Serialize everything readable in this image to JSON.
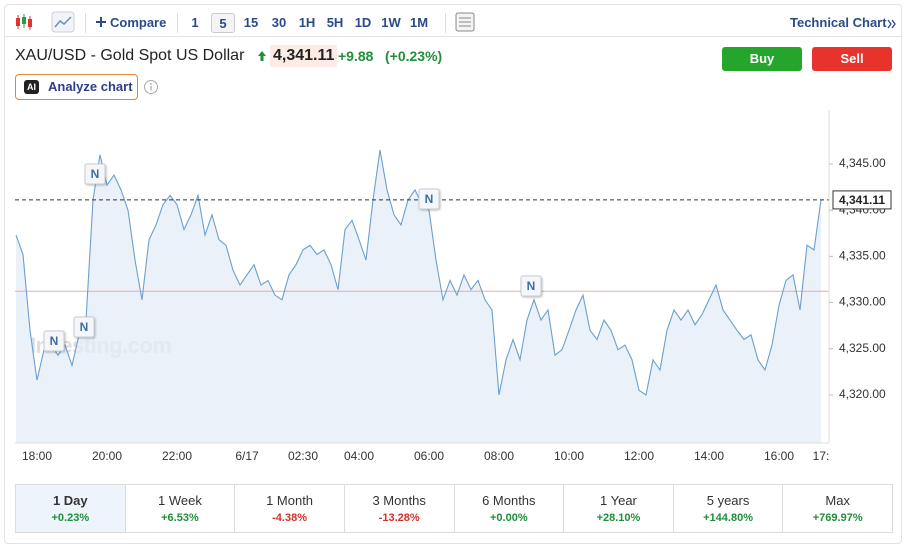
{
  "toolbar": {
    "compare": "Compare",
    "intervals": [
      "1",
      "5",
      "15",
      "30",
      "1H",
      "5H",
      "1D",
      "1W",
      "1M"
    ],
    "selected_interval": "5",
    "technical_chart": "Technical Chart"
  },
  "header": {
    "title": "XAU/USD - Gold Spot US Dollar",
    "price": "4,341.11",
    "change": "+9.88",
    "change_percent": "(+0.23%)",
    "buy": "Buy",
    "sell": "Sell",
    "ai_badge": "AI",
    "analyze": "Analyze chart"
  },
  "chart_data": {
    "type": "line",
    "watermark": "Investing.com",
    "color": "#6c9fcd",
    "area_color": "#e3ecf5",
    "grid": false,
    "ylim": [
      4314.8,
      4350.3
    ],
    "yticks": [
      {
        "value": 4320,
        "label": "4,320.00"
      },
      {
        "value": 4325,
        "label": "4,325.00"
      },
      {
        "value": 4330,
        "label": "4,330.00"
      },
      {
        "value": 4335,
        "label": "4,335.00"
      },
      {
        "value": 4340,
        "label": "4,340.00"
      },
      {
        "value": 4345,
        "label": "4,345.00"
      }
    ],
    "current_price": {
      "value": 4341.11,
      "label": "4,341.11"
    },
    "reference_line": 4331.23,
    "news_markers": [
      "N",
      "N",
      "N",
      "N",
      "N"
    ],
    "categories": [
      null,
      null,
      null,
      "18:00",
      null,
      null,
      null,
      null,
      null,
      null,
      null,
      null,
      null,
      "20:00",
      null,
      null,
      null,
      null,
      null,
      null,
      null,
      null,
      null,
      "22:00",
      null,
      null,
      null,
      null,
      null,
      null,
      null,
      null,
      null,
      "6/17",
      null,
      null,
      null,
      null,
      null,
      null,
      null,
      "02:30",
      null,
      null,
      null,
      null,
      null,
      null,
      null,
      "04:00",
      null,
      null,
      null,
      null,
      null,
      null,
      null,
      null,
      null,
      "06:00",
      null,
      null,
      null,
      null,
      null,
      null,
      null,
      null,
      null,
      "08:00",
      null,
      null,
      null,
      null,
      null,
      null,
      null,
      null,
      null,
      "10:00",
      null,
      null,
      null,
      null,
      null,
      null,
      null,
      null,
      null,
      "12:00",
      null,
      null,
      null,
      null,
      null,
      null,
      null,
      null,
      null,
      "14:00",
      null,
      null,
      null,
      null,
      null,
      null,
      null,
      null,
      null,
      "16:00",
      null,
      null,
      null,
      null,
      null,
      "17:"
    ],
    "values": [
      4337.3,
      4335.2,
      4327.0,
      4321.6,
      4324.9,
      4325.4,
      4324.3,
      4325.4,
      4323.2,
      4326.5,
      4328.1,
      4341.1,
      4346.0,
      4342.7,
      4343.8,
      4342.2,
      4340.0,
      4334.6,
      4330.3,
      4336.8,
      4338.4,
      4340.6,
      4341.6,
      4340.6,
      4337.9,
      4339.5,
      4341.6,
      4337.3,
      4339.5,
      4336.8,
      4336.2,
      4333.5,
      4331.9,
      4333.0,
      4334.1,
      4331.9,
      4332.4,
      4330.8,
      4330.3,
      4333.0,
      4334.1,
      4335.7,
      4336.2,
      4335.2,
      4335.7,
      4334.1,
      4331.4,
      4337.9,
      4338.9,
      4336.8,
      4334.6,
      4341.1,
      4346.5,
      4342.2,
      4339.5,
      4338.4,
      4341.1,
      4342.2,
      4340.6,
      4340.0,
      4334.6,
      4330.3,
      4332.4,
      4330.8,
      4333.0,
      4331.4,
      4332.4,
      4330.3,
      4329.2,
      4320.0,
      4323.8,
      4326.0,
      4323.8,
      4328.1,
      4330.3,
      4328.1,
      4329.2,
      4324.3,
      4324.9,
      4327.0,
      4329.2,
      4330.8,
      4327.0,
      4326.0,
      4328.1,
      4327.0,
      4324.9,
      4325.4,
      4323.8,
      4320.5,
      4320.0,
      4323.8,
      4322.7,
      4327.0,
      4329.2,
      4328.1,
      4329.2,
      4327.6,
      4328.7,
      4330.3,
      4331.9,
      4329.2,
      4328.1,
      4327.0,
      4326.0,
      4326.5,
      4323.8,
      4322.7,
      4325.4,
      4329.7,
      4332.4,
      4333.0,
      4329.2,
      4336.2,
      4335.7,
      4341.11
    ]
  },
  "periods": [
    {
      "label": "1 Day",
      "change": "+0.23%"
    },
    {
      "label": "1 Week",
      "change": "+6.53%"
    },
    {
      "label": "1 Month",
      "change": "-4.38%"
    },
    {
      "label": "3 Months",
      "change": "-13.28%"
    },
    {
      "label": "6 Months",
      "change": "+0.00%"
    },
    {
      "label": "1 Year",
      "change": "+28.10%"
    },
    {
      "label": "5 years",
      "change": "+144.80%"
    },
    {
      "label": "Max",
      "change": "+769.97%"
    }
  ]
}
